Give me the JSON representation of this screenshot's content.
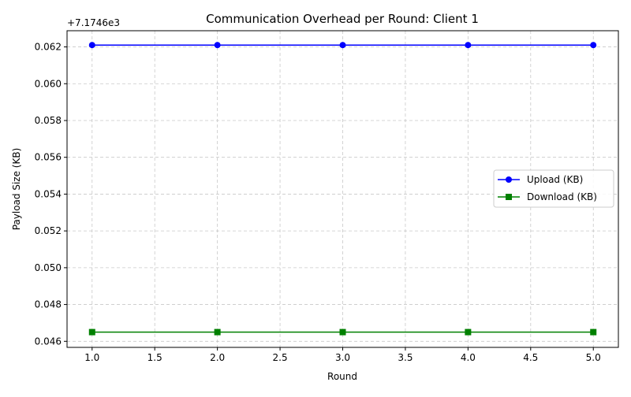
{
  "chart_data": {
    "type": "line",
    "title": "Communication Overhead per Round: Client 1",
    "xlabel": "Round",
    "ylabel": "Payload Size (KB)",
    "y_offset_label": "+7.1746e3",
    "xlim": [
      0.8,
      5.2
    ],
    "ylim": [
      0.04567,
      0.06288
    ],
    "x_ticks": [
      1.0,
      1.5,
      2.0,
      2.5,
      3.0,
      3.5,
      4.0,
      4.5,
      5.0
    ],
    "x_tick_labels": [
      "1.0",
      "1.5",
      "2.0",
      "2.5",
      "3.0",
      "3.5",
      "4.0",
      "4.5",
      "5.0"
    ],
    "y_ticks": [
      0.046,
      0.048,
      0.05,
      0.052,
      0.054,
      0.056,
      0.058,
      0.06,
      0.062
    ],
    "y_tick_labels": [
      "0.046",
      "0.048",
      "0.050",
      "0.052",
      "0.054",
      "0.056",
      "0.058",
      "0.060",
      "0.062"
    ],
    "grid": true,
    "legend_position": "center-right",
    "x": [
      1,
      2,
      3,
      4,
      5
    ],
    "series": [
      {
        "name": "Upload (KB)",
        "values": [
          0.0621,
          0.0621,
          0.0621,
          0.0621,
          0.0621
        ],
        "color": "#0000ff",
        "marker": "circle"
      },
      {
        "name": "Download (KB)",
        "values": [
          0.0465,
          0.0465,
          0.0465,
          0.0465,
          0.0465
        ],
        "color": "#008000",
        "marker": "square"
      }
    ]
  }
}
